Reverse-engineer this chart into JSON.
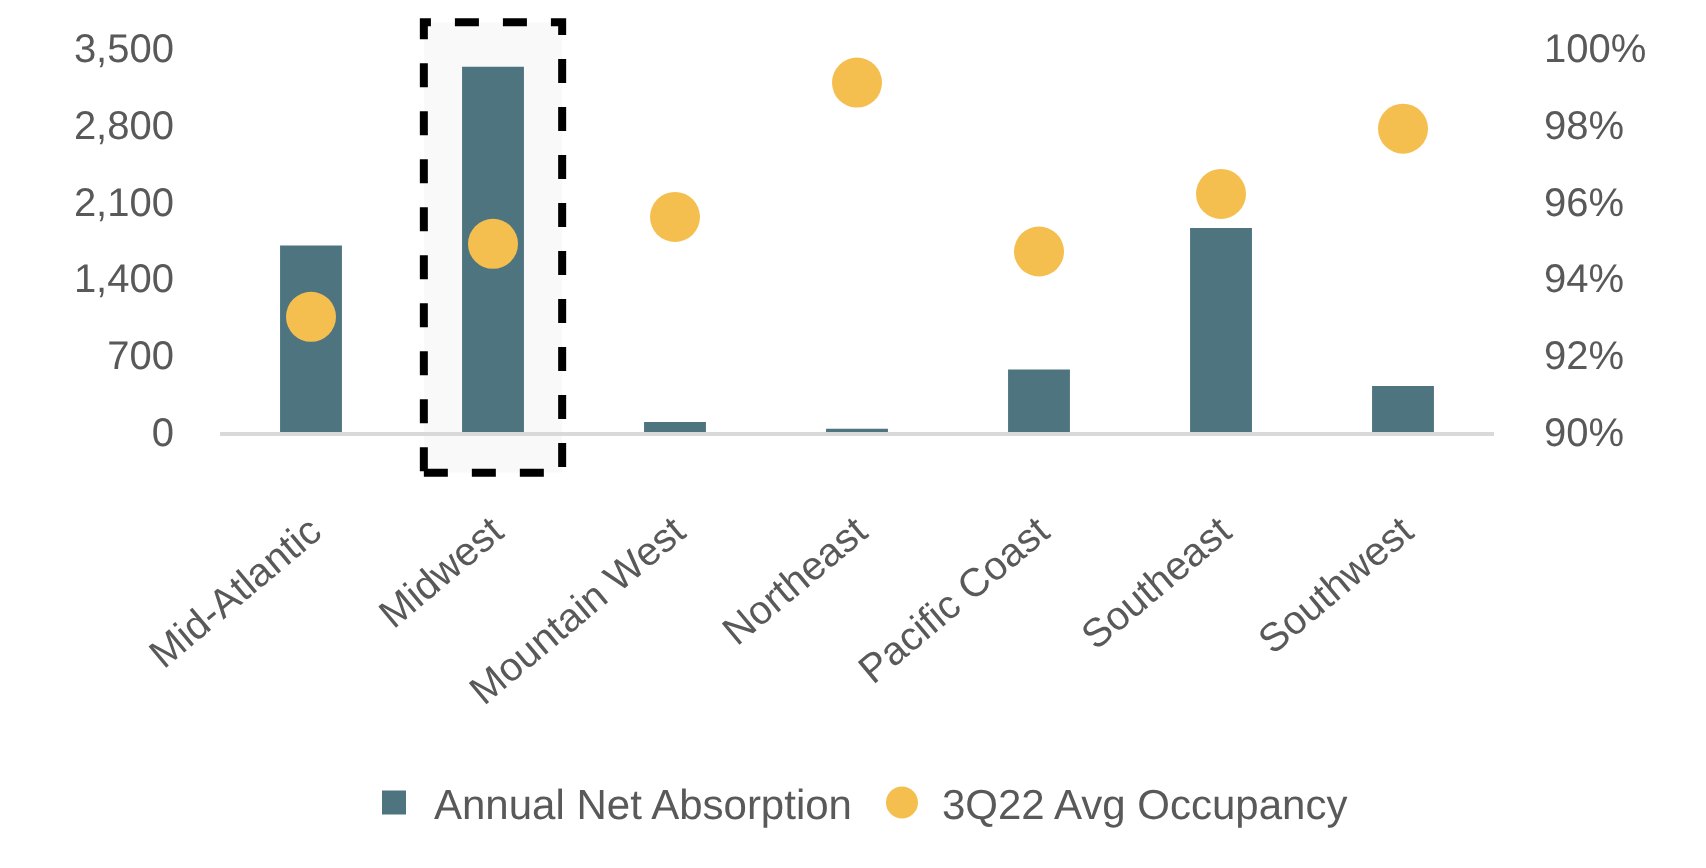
{
  "chart_data": {
    "type": "bar",
    "categories": [
      "Mid-Atlantic",
      "Midwest",
      "Mountain West",
      "Northeast",
      "Pacific Coast",
      "Southeast",
      "Southwest"
    ],
    "series": [
      {
        "name": "Annual Net Absorption",
        "color": "#4e7480",
        "values": [
          1700,
          3330,
          90,
          30,
          570,
          1860,
          420
        ]
      },
      {
        "name": "3Q22 Avg Occupancy",
        "type": "scatter",
        "axis": "y2",
        "color": "#f5bf4f",
        "values": [
          93.0,
          94.9,
          95.6,
          99.1,
          94.7,
          96.2,
          97.9
        ]
      }
    ],
    "ylim": [
      0,
      3500
    ],
    "yticks": [
      0,
      700,
      {
        "value": 1400,
        "label": "1,400"
      },
      {
        "value": 2100,
        "label": "2,100"
      },
      {
        "value": 2800,
        "label": "2,800"
      },
      {
        "value": 3500,
        "label": "3,500"
      }
    ],
    "y2lim": [
      90,
      100
    ],
    "y2ticks": [
      {
        "value": 90,
        "label": "90%"
      },
      {
        "value": 92,
        "label": "92%"
      },
      {
        "value": 94,
        "label": "94%"
      },
      {
        "value": 96,
        "label": "96%"
      },
      {
        "value": 98,
        "label": "98%"
      },
      {
        "value": 100,
        "label": "100%"
      }
    ],
    "grid": false,
    "legend": "bottom",
    "marker": "circle",
    "bands": [
      {
        "axis": "x",
        "from": "Midwest",
        "to": "Midwest",
        "color": "#000000"
      }
    ]
  }
}
